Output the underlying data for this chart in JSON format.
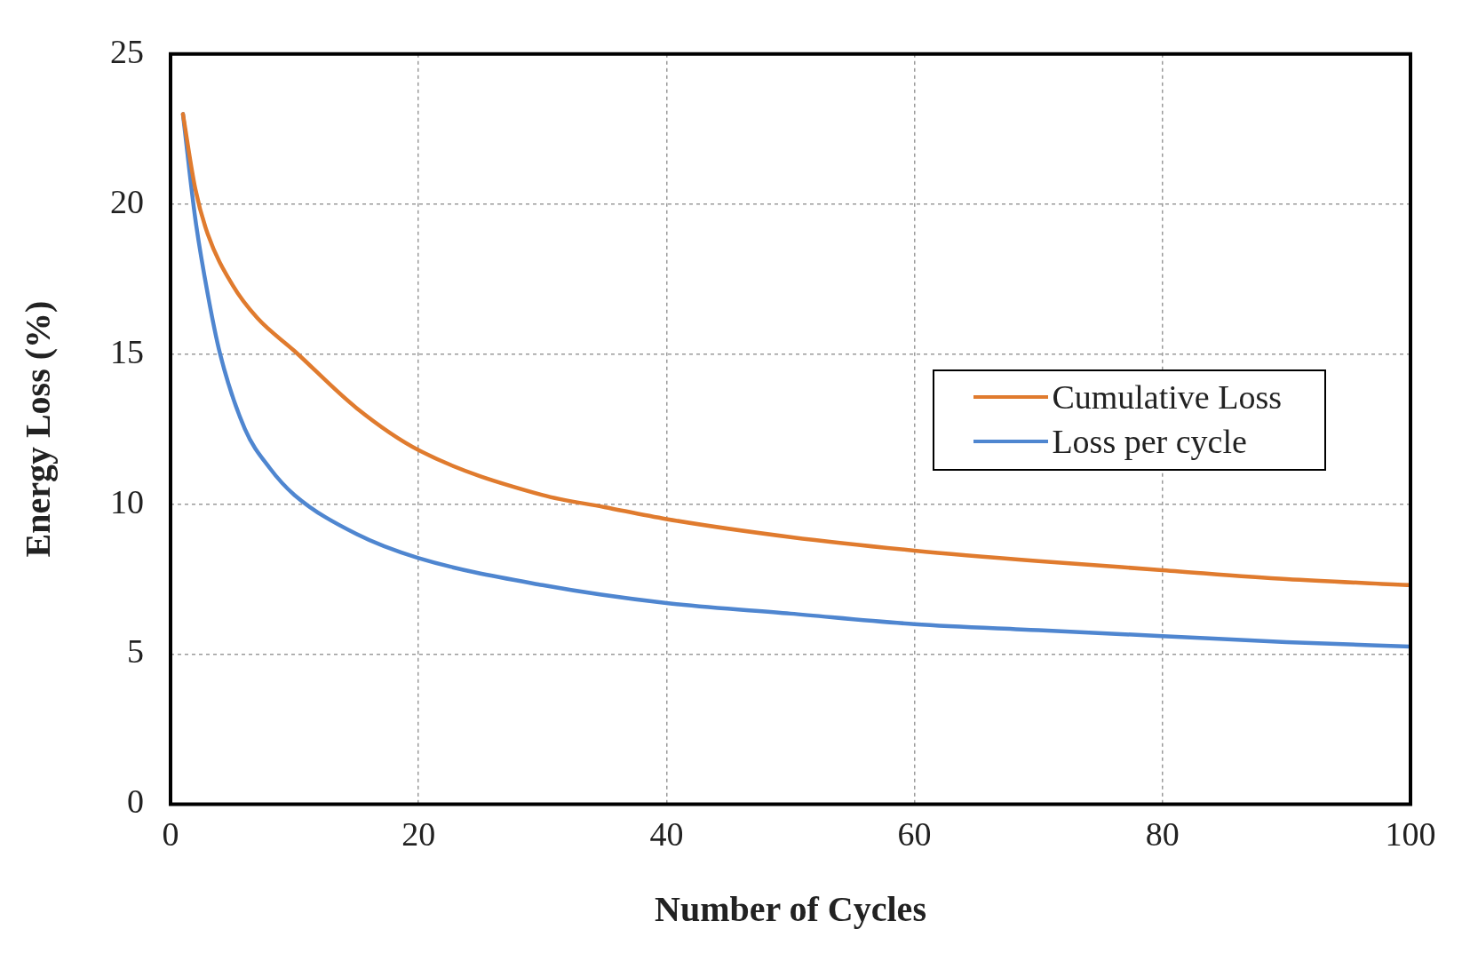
{
  "chart_data": {
    "type": "line",
    "xlabel": "Number of Cycles",
    "ylabel": "Energy Loss (%)",
    "xlim": [
      0,
      100
    ],
    "xticks": [
      0,
      20,
      40,
      60,
      80,
      100
    ],
    "ylim": [
      0,
      25
    ],
    "yticks": [
      0,
      5,
      10,
      15,
      20,
      25
    ],
    "grid": true,
    "legend": "right",
    "marker": "none",
    "line_style": "solid",
    "series": [
      {
        "name": "Cumulative Loss",
        "color": "#e07b2e",
        "x": [
          1,
          2,
          3,
          5,
          7,
          10,
          15,
          20,
          30,
          35,
          40,
          50,
          60,
          70,
          80,
          90,
          100
        ],
        "values": [
          23,
          20.5,
          19,
          17.3,
          16.2,
          15.1,
          13.2,
          11.8,
          10.3,
          9.9,
          9.5,
          8.9,
          8.45,
          8.1,
          7.8,
          7.5,
          7.3
        ]
      },
      {
        "name": "Loss per cycle",
        "color": "#4f86d0",
        "x": [
          1,
          2,
          3,
          4,
          6,
          8,
          10,
          15,
          20,
          30,
          40,
          50,
          60,
          70,
          80,
          90,
          100
        ],
        "values": [
          23,
          19.5,
          17,
          15,
          12.5,
          11.2,
          10.3,
          9,
          8.2,
          7.3,
          6.7,
          6.35,
          6,
          5.8,
          5.6,
          5.4,
          5.25
        ]
      }
    ]
  }
}
